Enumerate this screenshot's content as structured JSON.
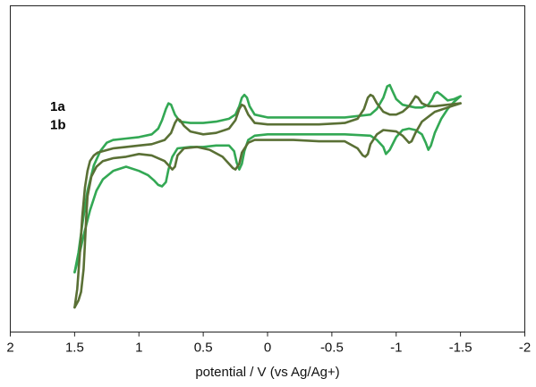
{
  "chart_data": {
    "type": "line",
    "title": "",
    "xlabel": "potential / V (vs Ag/Ag+)",
    "ylabel": "",
    "xlim": [
      2,
      -2
    ],
    "x_reversed": true,
    "x_ticks": [
      2,
      1.5,
      1,
      0.5,
      0,
      -0.5,
      -1,
      -1.5,
      -2
    ],
    "x_tick_labels": [
      "2",
      "1.5",
      "1",
      "0.5",
      "0",
      "-0.5",
      "-1",
      "-1.5",
      "-2"
    ],
    "ylim": [
      0,
      10
    ],
    "y_axis_visible": false,
    "grid": false,
    "legend": "none",
    "series": [
      {
        "name": "1a",
        "color": "#33a854",
        "upper": {
          "x": [
            1.5,
            1.47,
            1.44,
            1.4,
            1.35,
            1.3,
            1.25,
            1.2,
            1.1,
            1.0,
            0.9,
            0.85,
            0.82,
            0.79,
            0.77,
            0.75,
            0.72,
            0.68,
            0.6,
            0.5,
            0.4,
            0.3,
            0.25,
            0.22,
            0.2,
            0.18,
            0.16,
            0.14,
            0.1,
            0.05,
            0.0,
            -0.2,
            -0.4,
            -0.6,
            -0.8,
            -0.85,
            -0.9,
            -0.93,
            -0.95,
            -0.97,
            -1.0,
            -1.05,
            -1.1,
            -1.15,
            -1.2,
            -1.25,
            -1.28,
            -1.3,
            -1.32,
            -1.35,
            -1.4,
            -1.45,
            -1.5
          ],
          "y": [
            1.6,
            2.3,
            3.3,
            4.5,
            5.4,
            5.9,
            6.2,
            6.3,
            6.35,
            6.4,
            6.5,
            6.7,
            7.0,
            7.4,
            7.6,
            7.55,
            7.2,
            6.95,
            6.9,
            6.9,
            6.95,
            7.05,
            7.2,
            7.5,
            7.8,
            7.9,
            7.8,
            7.5,
            7.2,
            7.15,
            7.1,
            7.1,
            7.1,
            7.1,
            7.2,
            7.4,
            7.8,
            8.2,
            8.25,
            8.05,
            7.75,
            7.55,
            7.5,
            7.45,
            7.45,
            7.55,
            7.75,
            7.95,
            8.0,
            7.9,
            7.7,
            7.75,
            7.85
          ]
        },
        "lower": {
          "x": [
            1.5,
            1.47,
            1.43,
            1.38,
            1.33,
            1.28,
            1.2,
            1.1,
            1.0,
            0.93,
            0.88,
            0.85,
            0.82,
            0.79,
            0.77,
            0.74,
            0.7,
            0.6,
            0.5,
            0.4,
            0.3,
            0.26,
            0.24,
            0.22,
            0.2,
            0.18,
            0.15,
            0.1,
            0.0,
            -0.2,
            -0.4,
            -0.6,
            -0.8,
            -0.85,
            -0.9,
            -0.92,
            -0.95,
            -1.0,
            -1.05,
            -1.1,
            -1.15,
            -1.2,
            -1.23,
            -1.25,
            -1.27,
            -1.3,
            -1.35,
            -1.4,
            -1.45,
            -1.5
          ],
          "y": [
            1.6,
            2.1,
            2.9,
            3.8,
            4.5,
            4.9,
            5.2,
            5.35,
            5.2,
            5.05,
            4.85,
            4.7,
            4.65,
            4.8,
            5.25,
            5.7,
            6.0,
            6.05,
            6.05,
            6.1,
            6.1,
            5.9,
            5.5,
            5.25,
            5.45,
            5.9,
            6.3,
            6.45,
            6.5,
            6.5,
            6.5,
            6.5,
            6.45,
            6.3,
            6.05,
            5.8,
            5.95,
            6.4,
            6.65,
            6.7,
            6.65,
            6.5,
            6.2,
            5.95,
            6.1,
            6.55,
            7.05,
            7.4,
            7.65,
            7.85
          ]
        }
      },
      {
        "name": "1b",
        "color": "#5a7035",
        "upper": {
          "x": [
            1.5,
            1.48,
            1.46,
            1.44,
            1.42,
            1.4,
            1.38,
            1.35,
            1.32,
            1.28,
            1.2,
            1.1,
            1.0,
            0.9,
            0.8,
            0.75,
            0.72,
            0.7,
            0.68,
            0.65,
            0.6,
            0.5,
            0.4,
            0.3,
            0.25,
            0.22,
            0.2,
            0.18,
            0.15,
            0.1,
            0.0,
            -0.2,
            -0.4,
            -0.6,
            -0.7,
            -0.75,
            -0.78,
            -0.8,
            -0.82,
            -0.85,
            -0.9,
            -0.95,
            -1.0,
            -1.05,
            -1.1,
            -1.13,
            -1.15,
            -1.17,
            -1.2,
            -1.25,
            -1.3,
            -1.4,
            -1.5
          ],
          "y": [
            0.35,
            1.0,
            2.2,
            3.6,
            4.6,
            5.2,
            5.55,
            5.75,
            5.85,
            5.9,
            6.0,
            6.05,
            6.1,
            6.15,
            6.3,
            6.55,
            6.9,
            7.05,
            7.0,
            6.8,
            6.6,
            6.5,
            6.55,
            6.7,
            7.0,
            7.4,
            7.55,
            7.5,
            7.2,
            6.9,
            6.85,
            6.85,
            6.85,
            6.9,
            7.05,
            7.4,
            7.8,
            7.9,
            7.85,
            7.6,
            7.3,
            7.2,
            7.2,
            7.3,
            7.5,
            7.7,
            7.85,
            7.8,
            7.6,
            7.5,
            7.5,
            7.55,
            7.6
          ]
        },
        "lower": {
          "x": [
            1.5,
            1.47,
            1.45,
            1.43,
            1.42,
            1.41,
            1.4,
            1.37,
            1.33,
            1.28,
            1.2,
            1.1,
            1.0,
            0.9,
            0.8,
            0.76,
            0.74,
            0.72,
            0.7,
            0.65,
            0.55,
            0.45,
            0.35,
            0.3,
            0.27,
            0.25,
            0.22,
            0.2,
            0.15,
            0.1,
            0.0,
            -0.2,
            -0.4,
            -0.6,
            -0.7,
            -0.74,
            -0.76,
            -0.78,
            -0.8,
            -0.85,
            -0.9,
            -1.0,
            -1.05,
            -1.08,
            -1.1,
            -1.12,
            -1.15,
            -1.2,
            -1.3,
            -1.4,
            -1.5
          ],
          "y": [
            0.35,
            0.6,
            0.9,
            1.7,
            2.6,
            3.5,
            4.3,
            5.0,
            5.35,
            5.55,
            5.65,
            5.7,
            5.8,
            5.75,
            5.55,
            5.35,
            5.25,
            5.35,
            5.75,
            6.0,
            6.05,
            5.95,
            5.7,
            5.45,
            5.3,
            5.25,
            5.45,
            5.85,
            6.2,
            6.3,
            6.3,
            6.3,
            6.25,
            6.25,
            6.0,
            5.75,
            5.7,
            5.8,
            6.15,
            6.5,
            6.65,
            6.6,
            6.45,
            6.3,
            6.2,
            6.25,
            6.55,
            6.95,
            7.3,
            7.45,
            7.6
          ]
        }
      }
    ]
  }
}
